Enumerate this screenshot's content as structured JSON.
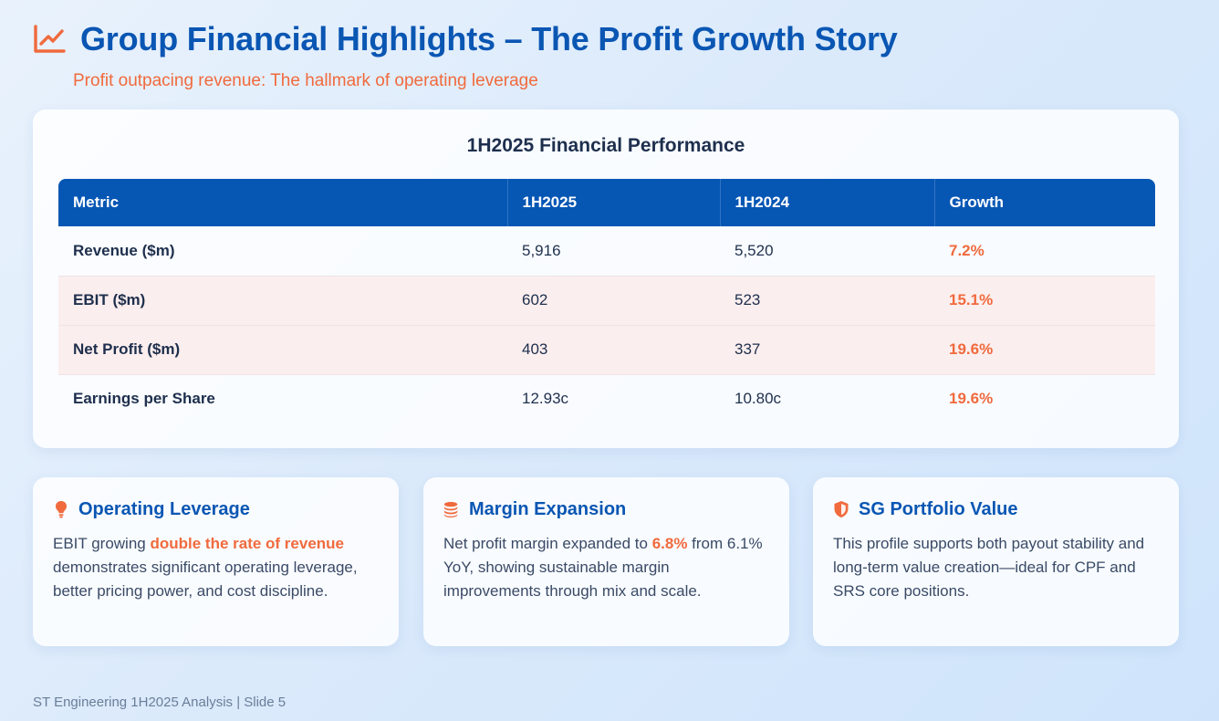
{
  "header": {
    "icon": "line-chart-icon",
    "title": "Group Financial Highlights – The Profit Growth Story",
    "subtitle": "Profit outpacing revenue: The hallmark of operating leverage"
  },
  "table": {
    "title": "1H2025 Financial Performance",
    "columns": [
      "Metric",
      "1H2025",
      "1H2024",
      "Growth"
    ],
    "rows": [
      {
        "metric": "Revenue ($m)",
        "h2025": "5,916",
        "h2024": "5,520",
        "growth": "7.2%"
      },
      {
        "metric": "EBIT ($m)",
        "h2025": "602",
        "h2024": "523",
        "growth": "15.1%"
      },
      {
        "metric": "Net Profit ($m)",
        "h2025": "403",
        "h2024": "337",
        "growth": "19.6%"
      },
      {
        "metric": "Earnings per Share",
        "h2025": "12.93c",
        "h2024": "10.80c",
        "growth": "19.6%"
      }
    ]
  },
  "cards": [
    {
      "icon": "lightbulb-icon",
      "title": "Operating Leverage",
      "body_pre": "EBIT growing ",
      "body_highlight": "double the rate of revenue",
      "body_post": " demonstrates significant operating leverage, better pricing power, and cost discipline."
    },
    {
      "icon": "coins-icon",
      "title": "Margin Expansion",
      "body_pre": "Net profit margin expanded to ",
      "body_highlight": "6.8%",
      "body_post": " from 6.1% YoY, showing sustainable margin improvements through mix and scale."
    },
    {
      "icon": "shield-icon",
      "title": "SG Portfolio Value",
      "body_pre": "This profile supports both payout stability and long-term value creation—ideal for CPF and SRS core positions.",
      "body_highlight": "",
      "body_post": ""
    }
  ],
  "footer": "ST Engineering 1H2025 Analysis | Slide 5",
  "colors": {
    "primary": "#0a56b3",
    "accent": "#f06a3d",
    "table_header": "#0656b4",
    "highlight_row": "#fbeeee"
  }
}
